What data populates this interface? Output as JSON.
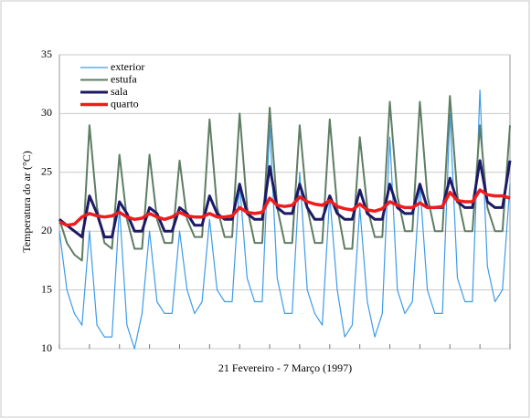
{
  "chart_data": {
    "type": "line",
    "xlabel": "21 Fevereiro - 7 Março (1997)",
    "ylabel": "Temperatura do ar (°C)",
    "categories": [
      null,
      null,
      null,
      null,
      null,
      null,
      null,
      null,
      null,
      null,
      null,
      null,
      null,
      null,
      null,
      null,
      null,
      null,
      null,
      null,
      null,
      null,
      null,
      null,
      null,
      null,
      null,
      null,
      null,
      null,
      null,
      null,
      null,
      null,
      null,
      null,
      null,
      null,
      null,
      null,
      null,
      null,
      null,
      null,
      null,
      null,
      null,
      null,
      null,
      null,
      null,
      null,
      null,
      null,
      null,
      null,
      null,
      null,
      null,
      null,
      null
    ],
    "ylim": [
      10,
      35
    ],
    "yticks": [
      10,
      15,
      20,
      25,
      30,
      35
    ],
    "grid": true,
    "legend": "upper left",
    "series": [
      {
        "name": "exterior",
        "color": "#3d9be9",
        "width": 1.2,
        "values": [
          20,
          15,
          13,
          12,
          20,
          12,
          11,
          11,
          22,
          12,
          10,
          13,
          20,
          14,
          13,
          13,
          20,
          15,
          13,
          14,
          21,
          15,
          14,
          14,
          24,
          16,
          14,
          14,
          29,
          16,
          13,
          13,
          25,
          15,
          13,
          12,
          23,
          15,
          11,
          12,
          22,
          14,
          11,
          13,
          28,
          15,
          13,
          14,
          24,
          15,
          13,
          13,
          30,
          16,
          14,
          14,
          32,
          17,
          14,
          15,
          24
        ]
      },
      {
        "name": "estufa",
        "color": "#5e7d62",
        "width": 2,
        "values": [
          21,
          19,
          18,
          17.5,
          29,
          22,
          19,
          18.5,
          26.5,
          21,
          18.5,
          18.5,
          26.5,
          21,
          19,
          19,
          26,
          21,
          19.5,
          19.5,
          29.5,
          22,
          19.5,
          19.5,
          30,
          22,
          19,
          19,
          30.5,
          22,
          19,
          19,
          29,
          22,
          19,
          19,
          29.5,
          22,
          18.5,
          18.5,
          28,
          22,
          19.5,
          19.5,
          31,
          23,
          20,
          20,
          31,
          23,
          20,
          20,
          31.5,
          23,
          20,
          20,
          29,
          22,
          20,
          20,
          29
        ]
      },
      {
        "name": "sala",
        "color": "#1c1a66",
        "width": 3,
        "values": [
          21,
          20.5,
          20,
          19.5,
          23,
          21.5,
          19.5,
          19.5,
          22.5,
          21.5,
          20,
          20,
          22,
          21.5,
          20,
          20,
          22,
          21.5,
          20.5,
          20.5,
          23,
          21.5,
          21,
          21,
          24,
          21.5,
          21,
          21,
          25.5,
          22,
          21.5,
          21.5,
          24,
          22,
          21,
          21,
          23,
          21.5,
          21,
          21,
          23.5,
          21.5,
          21,
          21,
          24,
          22,
          21.5,
          21.5,
          24,
          22,
          22,
          22,
          24.5,
          22.5,
          22,
          22,
          26,
          22.5,
          22,
          22,
          26
        ]
      },
      {
        "name": "quarto",
        "color": "#ee1c1c",
        "width": 3.5,
        "values": [
          20.8,
          20.5,
          20.6,
          21.2,
          21.5,
          21.3,
          21.2,
          21.3,
          21.6,
          21.2,
          21,
          21.1,
          21.5,
          21.2,
          21,
          21.2,
          21.6,
          21.3,
          21.2,
          21.2,
          21.5,
          21.2,
          21.2,
          21.3,
          22,
          21.6,
          21.5,
          21.6,
          22.8,
          22.2,
          22.1,
          22.2,
          22.9,
          22.5,
          22.3,
          22.2,
          22.6,
          22.1,
          21.9,
          21.8,
          22.3,
          21.8,
          21.7,
          21.9,
          22.5,
          22.2,
          22,
          22,
          22.4,
          22,
          22,
          22.1,
          23.3,
          22.6,
          22.5,
          22.5,
          23.5,
          23.1,
          23,
          23,
          22.8
        ]
      }
    ]
  }
}
